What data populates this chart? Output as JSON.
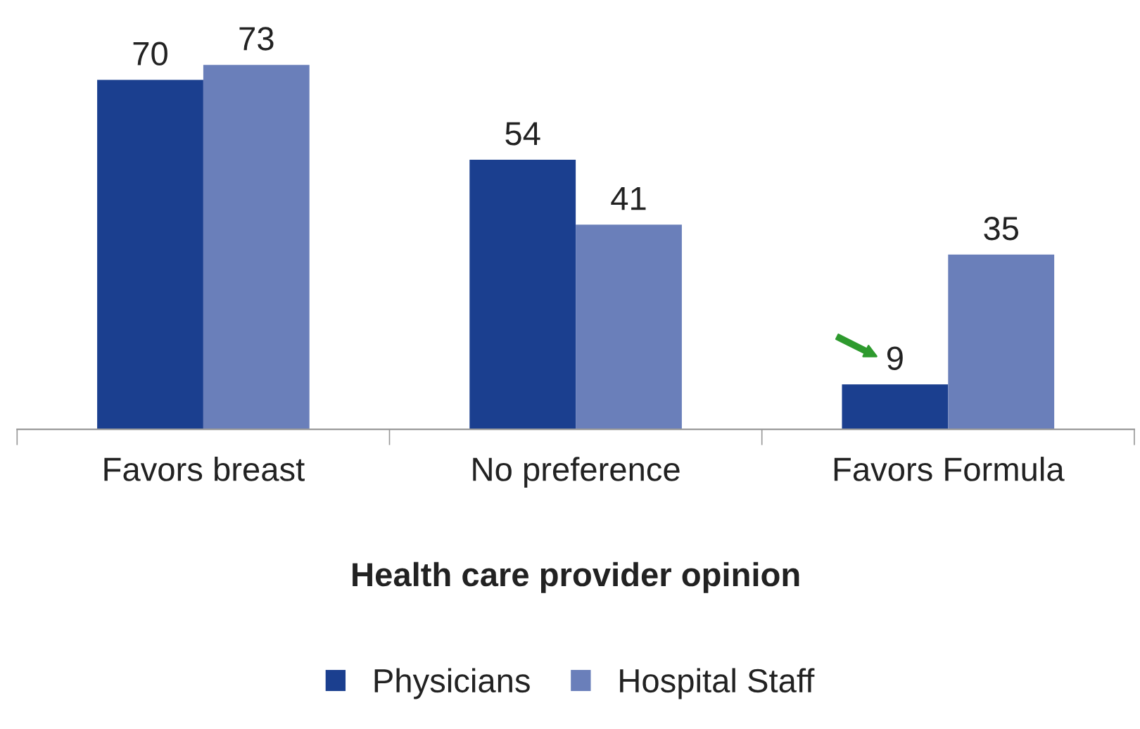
{
  "chart_data": {
    "type": "bar",
    "xlabel": "Health care provider opinion",
    "categories": [
      "Favors breast",
      "No preference",
      "Favors Formula"
    ],
    "series": [
      {
        "name": "Physicians",
        "color": "#1b3f8f",
        "values": [
          70,
          54,
          9
        ]
      },
      {
        "name": "Hospital Staff",
        "color": "#6a7fba",
        "values": [
          73,
          41,
          35
        ]
      }
    ],
    "data_labels": true,
    "legend": "bottom"
  }
}
